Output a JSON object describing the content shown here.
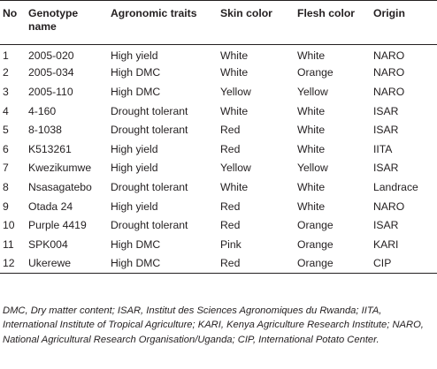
{
  "table": {
    "headers": {
      "no": "No",
      "genotype": "Genotype name",
      "agronomic": "Agronomic traits",
      "skin": "Skin color",
      "flesh": "Flesh color",
      "origin": "Origin"
    },
    "rows": [
      {
        "no": "1",
        "genotype": "2005-020",
        "agronomic": "High yield",
        "skin": "White",
        "flesh": "White",
        "origin": "NARO"
      },
      {
        "no": "2",
        "genotype": "2005-034",
        "agronomic": "High DMC",
        "skin": "White",
        "flesh": "Orange",
        "origin": "NARO"
      },
      {
        "no": "3",
        "genotype": "2005-110",
        "agronomic": "High DMC",
        "skin": "Yellow",
        "flesh": "Yellow",
        "origin": "NARO"
      },
      {
        "no": "4",
        "genotype": "4-160",
        "agronomic": "Drought tolerant",
        "skin": "White",
        "flesh": "White",
        "origin": "ISAR"
      },
      {
        "no": "5",
        "genotype": "8-1038",
        "agronomic": "Drought tolerant",
        "skin": "Red",
        "flesh": "White",
        "origin": "ISAR"
      },
      {
        "no": "6",
        "genotype": "K513261",
        "agronomic": "High yield",
        "skin": "Red",
        "flesh": "White",
        "origin": "IITA"
      },
      {
        "no": "7",
        "genotype": "Kwezikumwe",
        "agronomic": "High yield",
        "skin": "Yellow",
        "flesh": "Yellow",
        "origin": "ISAR"
      },
      {
        "no": "8",
        "genotype": "Nsasagatebo",
        "agronomic": "Drought tolerant",
        "skin": "White",
        "flesh": "White",
        "origin": "Landrace"
      },
      {
        "no": "9",
        "genotype": "Otada 24",
        "agronomic": "High yield",
        "skin": "Red",
        "flesh": "White",
        "origin": "NARO"
      },
      {
        "no": "10",
        "genotype": "Purple 4419",
        "agronomic": "Drought tolerant",
        "skin": "Red",
        "flesh": "Orange",
        "origin": "ISAR"
      },
      {
        "no": "11",
        "genotype": "SPK004",
        "agronomic": "High DMC",
        "skin": "Pink",
        "flesh": "Orange",
        "origin": "KARI"
      },
      {
        "no": "12",
        "genotype": "Ukerewe",
        "agronomic": "High DMC",
        "skin": "Red",
        "flesh": "Orange",
        "origin": "CIP"
      }
    ]
  },
  "footnote": "DMC, Dry matter content; ISAR, Institut des Sciences Agronomiques du Rwanda; IITA, International Institute of Tropical Agriculture; KARI, Kenya Agriculture Research Institute; NARO, National Agricultural Research Organisation/Uganda; CIP, International Potato Center."
}
